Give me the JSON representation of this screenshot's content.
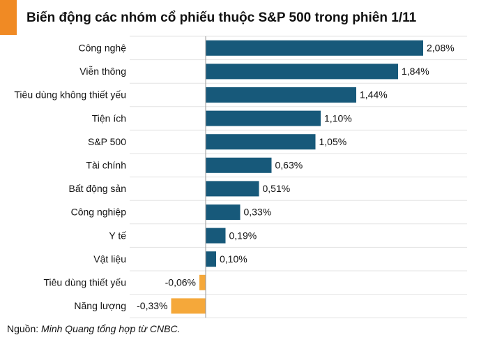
{
  "chart_data": {
    "type": "hbar",
    "title": "Biến động các nhóm cổ phiếu thuộc S&P 500 trong phiên 1/11",
    "categories": [
      "Công nghệ",
      "Viễn thông",
      "Tiêu dùng không thiết yếu",
      "Tiện ích",
      "S&P 500",
      "Tài chính",
      "Bất động sản",
      "Công nghiệp",
      "Y tế",
      "Vật liệu",
      "Tiêu dùng thiết yếu",
      "Năng lượng"
    ],
    "values": [
      2.08,
      1.84,
      1.44,
      1.1,
      1.05,
      0.63,
      0.51,
      0.33,
      0.19,
      0.1,
      -0.06,
      -0.33
    ],
    "value_labels": [
      "2,08%",
      "1,84%",
      "1,44%",
      "1,10%",
      "1,05%",
      "0,63%",
      "0,51%",
      "0,33%",
      "0,19%",
      "0,10%",
      "-0,06%",
      "-0,33%"
    ],
    "color": "#17597a",
    "negative_color": "#f5a83a",
    "source_label": "Nguồn:",
    "source": "Minh Quang tổng hợp từ CNBC."
  }
}
